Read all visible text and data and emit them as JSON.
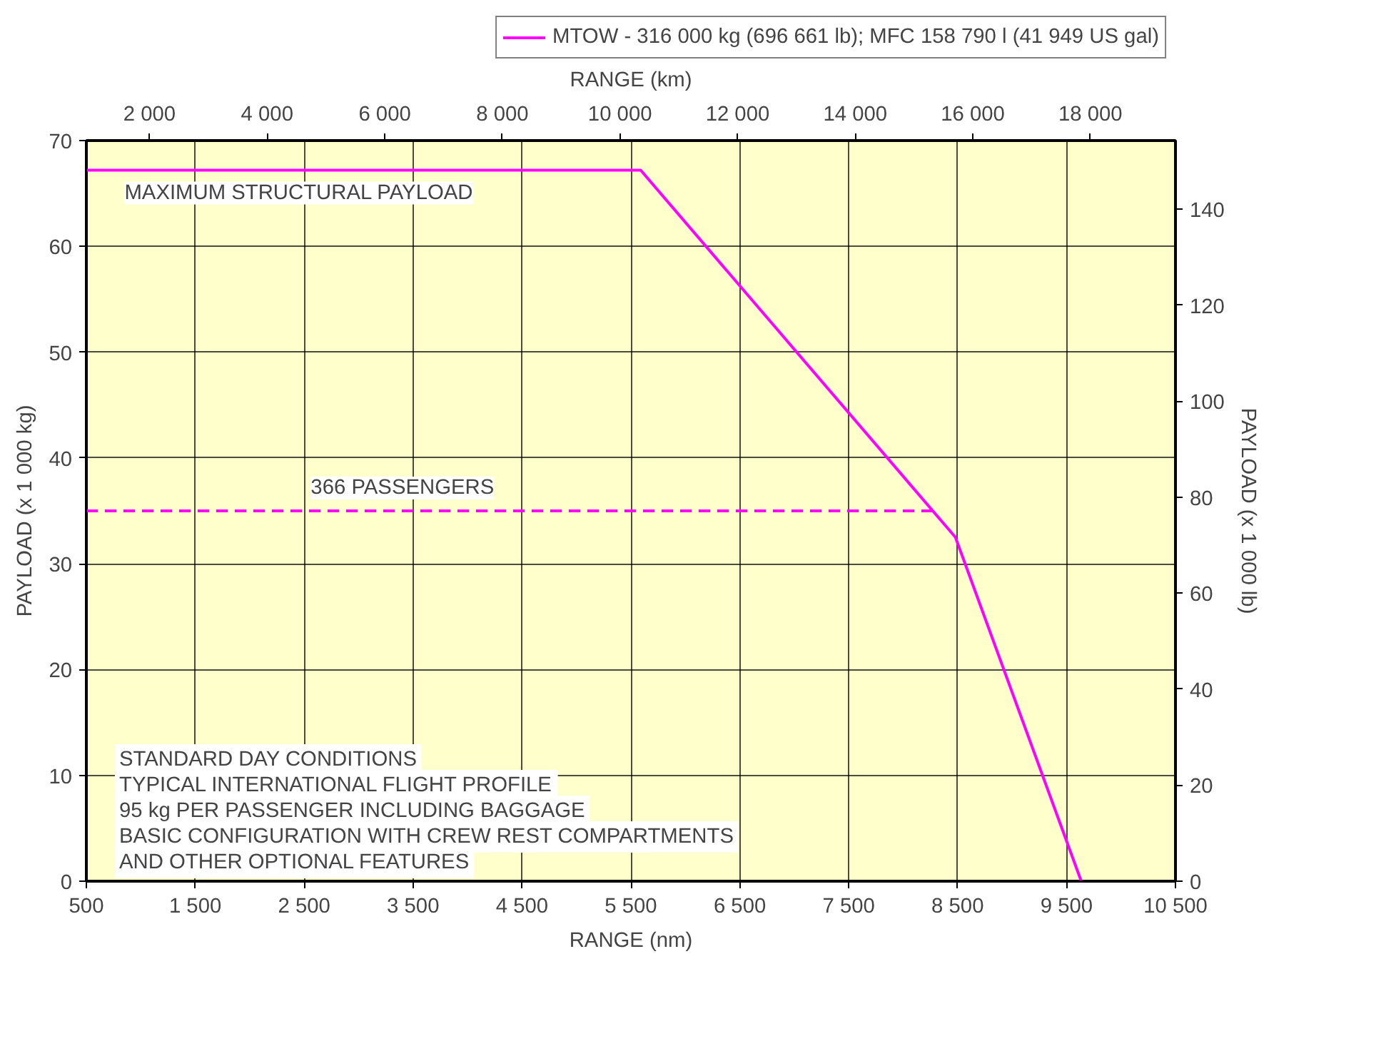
{
  "chart_data": {
    "type": "line",
    "xlabel": "RANGE (nm)",
    "x2label": "RANGE (km)",
    "ylabel": "PAYLOAD (x 1 000 kg)",
    "y2label": "PAYLOAD (x 1 000 lb)",
    "xlim": [
      500,
      10500
    ],
    "xticks": [
      {
        "value": 500,
        "label": "500"
      },
      {
        "value": 1500,
        "label": "1 500"
      },
      {
        "value": 2500,
        "label": "2 500"
      },
      {
        "value": 3500,
        "label": "3 500"
      },
      {
        "value": 4500,
        "label": "4 500"
      },
      {
        "value": 5500,
        "label": "5 500"
      },
      {
        "value": 6500,
        "label": "6 500"
      },
      {
        "value": 7500,
        "label": "7 500"
      },
      {
        "value": 8500,
        "label": "8 500"
      },
      {
        "value": 9500,
        "label": "9 500"
      },
      {
        "value": 10500,
        "label": "10 500"
      }
    ],
    "x2lim": [
      926,
      19446
    ],
    "x2ticks": [
      {
        "value": 2000,
        "label": "2 000"
      },
      {
        "value": 4000,
        "label": "4 000"
      },
      {
        "value": 6000,
        "label": "6 000"
      },
      {
        "value": 8000,
        "label": "8 000"
      },
      {
        "value": 10000,
        "label": "10 000"
      },
      {
        "value": 12000,
        "label": "12 000"
      },
      {
        "value": 14000,
        "label": "14 000"
      },
      {
        "value": 16000,
        "label": "16 000"
      },
      {
        "value": 18000,
        "label": "18 000"
      }
    ],
    "ylim": [
      0,
      70
    ],
    "yticks": [
      0,
      10,
      20,
      30,
      40,
      50,
      60,
      70
    ],
    "y2lim": [
      0,
      154.32
    ],
    "y2ticks": [
      0,
      20,
      40,
      60,
      80,
      100,
      120,
      140
    ],
    "grid": true,
    "legend": "top right",
    "series": [
      {
        "name": "MTOW - 316 000 kg (696 661 lb); MFC 158 790 l (41 949 US gal)",
        "color": "#ff00ff",
        "x": [
          500,
          5590,
          8480,
          9635
        ],
        "values": [
          67.2,
          67.2,
          32.5,
          0
        ],
        "line_style": "solid"
      },
      {
        "color": "#ff00ff",
        "x": [
          500,
          8290
        ],
        "values": [
          35,
          35
        ],
        "line_style": "dashed"
      }
    ],
    "annotations": [
      {
        "text": "MAXIMUM STRUCTURAL PAYLOAD",
        "x": 850,
        "y": 67.2
      },
      {
        "text": "366 PASSENGERS",
        "x": 2560,
        "y": 35
      },
      "STANDARD DAY CONDITIONS",
      "TYPICAL INTERNATIONAL FLIGHT PROFILE",
      "95 kg PER PASSENGER INCLUDING BAGGAGE",
      "BASIC CONFIGURATION WITH CREW REST COMPARTMENTS",
      "AND OTHER OPTIONAL FEATURES"
    ]
  }
}
